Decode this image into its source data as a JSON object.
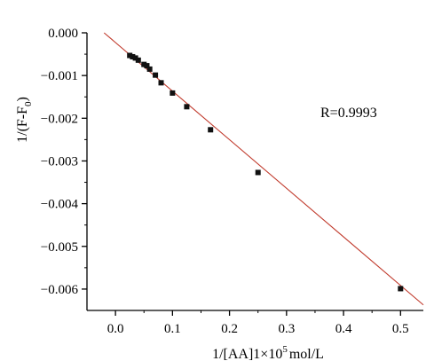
{
  "chart_data": {
    "type": "scatter",
    "title": "",
    "xlabel_parts": {
      "base": "1/[AA]1×10",
      "sup": "5",
      "rest": "mol/L"
    },
    "ylabel_parts": {
      "base": "1/(F-F",
      "sub": "0",
      "rest": ")"
    },
    "xlim": [
      -0.05,
      0.54
    ],
    "ylim": [
      -0.0065,
      0.0
    ],
    "xticks": [
      0.0,
      0.1,
      0.2,
      0.3,
      0.4,
      0.5
    ],
    "xtick_labels": [
      "0.0",
      "0.1",
      "0.2",
      "0.3",
      "0.4",
      "0.5"
    ],
    "yticks": [
      0.0,
      -0.001,
      -0.002,
      -0.003,
      -0.004,
      -0.005,
      -0.006
    ],
    "ytick_labels": [
      "0.000",
      "−0.001",
      "−0.002",
      "−0.003",
      "−0.004",
      "−0.005",
      "−0.006"
    ],
    "grid": false,
    "annotation": "R=0.9993",
    "series": [
      {
        "x": [
          0.025,
          0.03,
          0.035,
          0.04,
          0.05,
          0.055,
          0.06,
          0.07,
          0.08,
          0.1,
          0.125,
          0.1667,
          0.25,
          0.5
        ],
        "y": [
          -0.00053,
          -0.00056,
          -0.00059,
          -0.00064,
          -0.00074,
          -0.00077,
          -0.00085,
          -0.00099,
          -0.00117,
          -0.00141,
          -0.00173,
          -0.00227,
          -0.00327,
          -0.00599
        ]
      }
    ],
    "fit_line": {
      "x": [
        -0.02,
        0.54
      ],
      "y": [
        0.0,
        -0.00637
      ]
    },
    "colors": {
      "points": "#111111",
      "fit_line": "#c0392b",
      "axes": "#000000"
    }
  }
}
